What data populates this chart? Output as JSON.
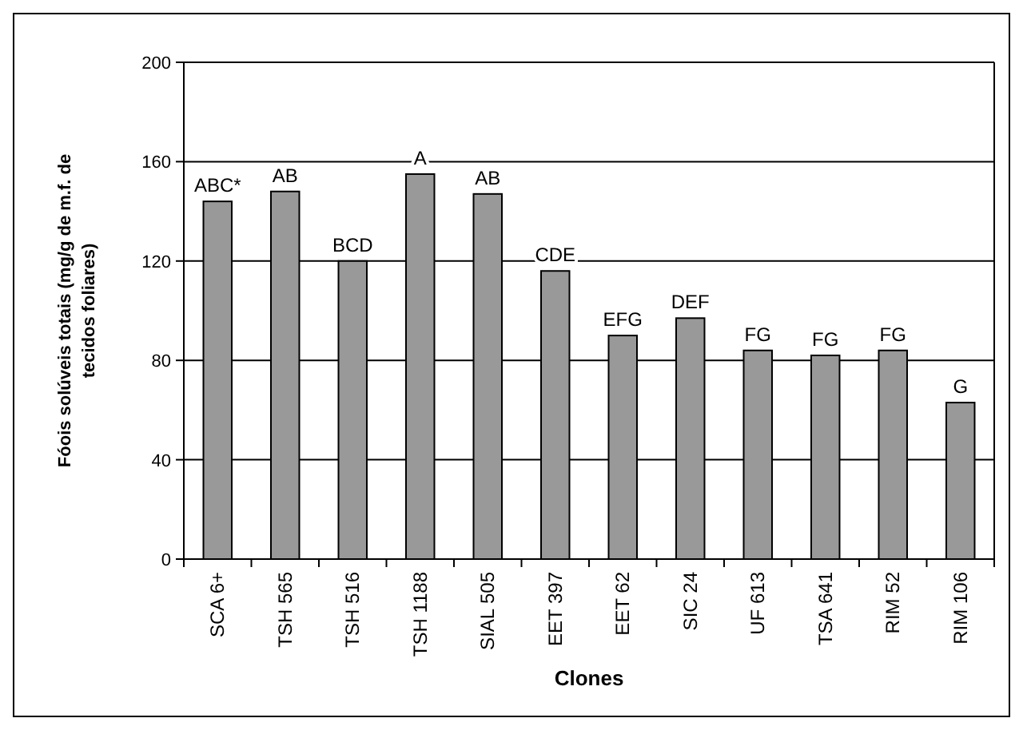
{
  "chart_data": {
    "type": "bar",
    "xlabel": "Clones",
    "ylabel": "Fóois solúveis totais (mg/g de m.f. de tecidos foliares)",
    "categories": [
      "SCA 6+",
      "TSH 565",
      "TSH 516",
      "TSH 1188",
      "SIAL 505",
      "EET 397",
      "EET 62",
      "SIC 24",
      "UF 613",
      "TSA 641",
      "RIM 52",
      "RIM 106"
    ],
    "values": [
      144,
      148,
      120,
      155,
      147,
      116,
      90,
      97,
      84,
      82,
      84,
      63
    ],
    "value_labels": [
      "ABC*",
      "AB",
      "BCD",
      "A",
      "AB",
      "CDE",
      "EFG",
      "DEF",
      "FG",
      "FG",
      "FG",
      "G"
    ],
    "color": "#999999",
    "ylim": [
      0,
      200
    ],
    "yticks": [
      0,
      40,
      80,
      120,
      160,
      200
    ],
    "grid": "y"
  }
}
